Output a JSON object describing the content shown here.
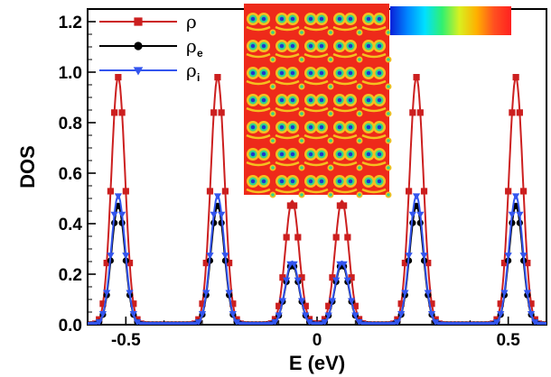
{
  "colors": {
    "rho": "#cc1f1f",
    "rho_e": "#000000",
    "rho_i": "#3355ee",
    "map_background": "#ee2a1a",
    "map_mid": "#f5c020",
    "map_ring": "#33d68a",
    "map_core": "#1a3bd0"
  },
  "icons": {
    "rho": "square-marker",
    "rho_e": "circle-marker",
    "rho_i": "down-triangle-marker"
  },
  "inset": {
    "type": "density-map",
    "colorbar": [
      "#0a1fd8",
      "#0087ff",
      "#00e0ff",
      "#30f070",
      "#d8f020",
      "#ffb000",
      "#ff5020",
      "#ff2020"
    ]
  },
  "chart_data": {
    "type": "line",
    "title": "",
    "xlabel": "E (eV)",
    "ylabel": "DOS",
    "xlim": [
      -0.6,
      0.6
    ],
    "ylim": [
      0,
      1.25
    ],
    "xticks": [
      -0.5,
      0,
      0.5
    ],
    "xtick_labels": [
      "-0.5",
      "0",
      "0.5"
    ],
    "yticks": [
      0,
      0.2,
      0.4,
      0.6,
      0.8,
      1.0,
      1.2
    ],
    "ytick_labels": [
      "0.0",
      "0.2",
      "0.4",
      "0.6",
      "0.8",
      "1.0",
      "1.2"
    ],
    "grid": false,
    "legend_position": "top-left",
    "legend": [
      {
        "main": "ρ",
        "sub": ""
      },
      {
        "main": "ρ",
        "sub": "e"
      },
      {
        "main": "ρ",
        "sub": "i"
      }
    ],
    "peak_width_sigma": 0.018,
    "sample_step": 0.01,
    "series": [
      {
        "name": "ρ",
        "peaks": [
          {
            "center": -0.52,
            "height": 0.98
          },
          {
            "center": -0.26,
            "height": 0.98
          },
          {
            "center": -0.065,
            "height": 0.49
          },
          {
            "center": 0.065,
            "height": 0.49
          },
          {
            "center": 0.26,
            "height": 0.98
          },
          {
            "center": 0.52,
            "height": 0.98
          }
        ]
      },
      {
        "name": "ρe",
        "peaks": [
          {
            "center": -0.52,
            "height": 0.47
          },
          {
            "center": -0.26,
            "height": 0.47
          },
          {
            "center": -0.065,
            "height": 0.24
          },
          {
            "center": 0.065,
            "height": 0.24
          },
          {
            "center": 0.26,
            "height": 0.47
          },
          {
            "center": 0.52,
            "height": 0.47
          }
        ]
      },
      {
        "name": "ρi",
        "peaks": [
          {
            "center": -0.52,
            "height": 0.51
          },
          {
            "center": -0.26,
            "height": 0.51
          },
          {
            "center": -0.065,
            "height": 0.25
          },
          {
            "center": 0.065,
            "height": 0.25
          },
          {
            "center": 0.26,
            "height": 0.51
          },
          {
            "center": 0.52,
            "height": 0.51
          }
        ]
      }
    ]
  }
}
